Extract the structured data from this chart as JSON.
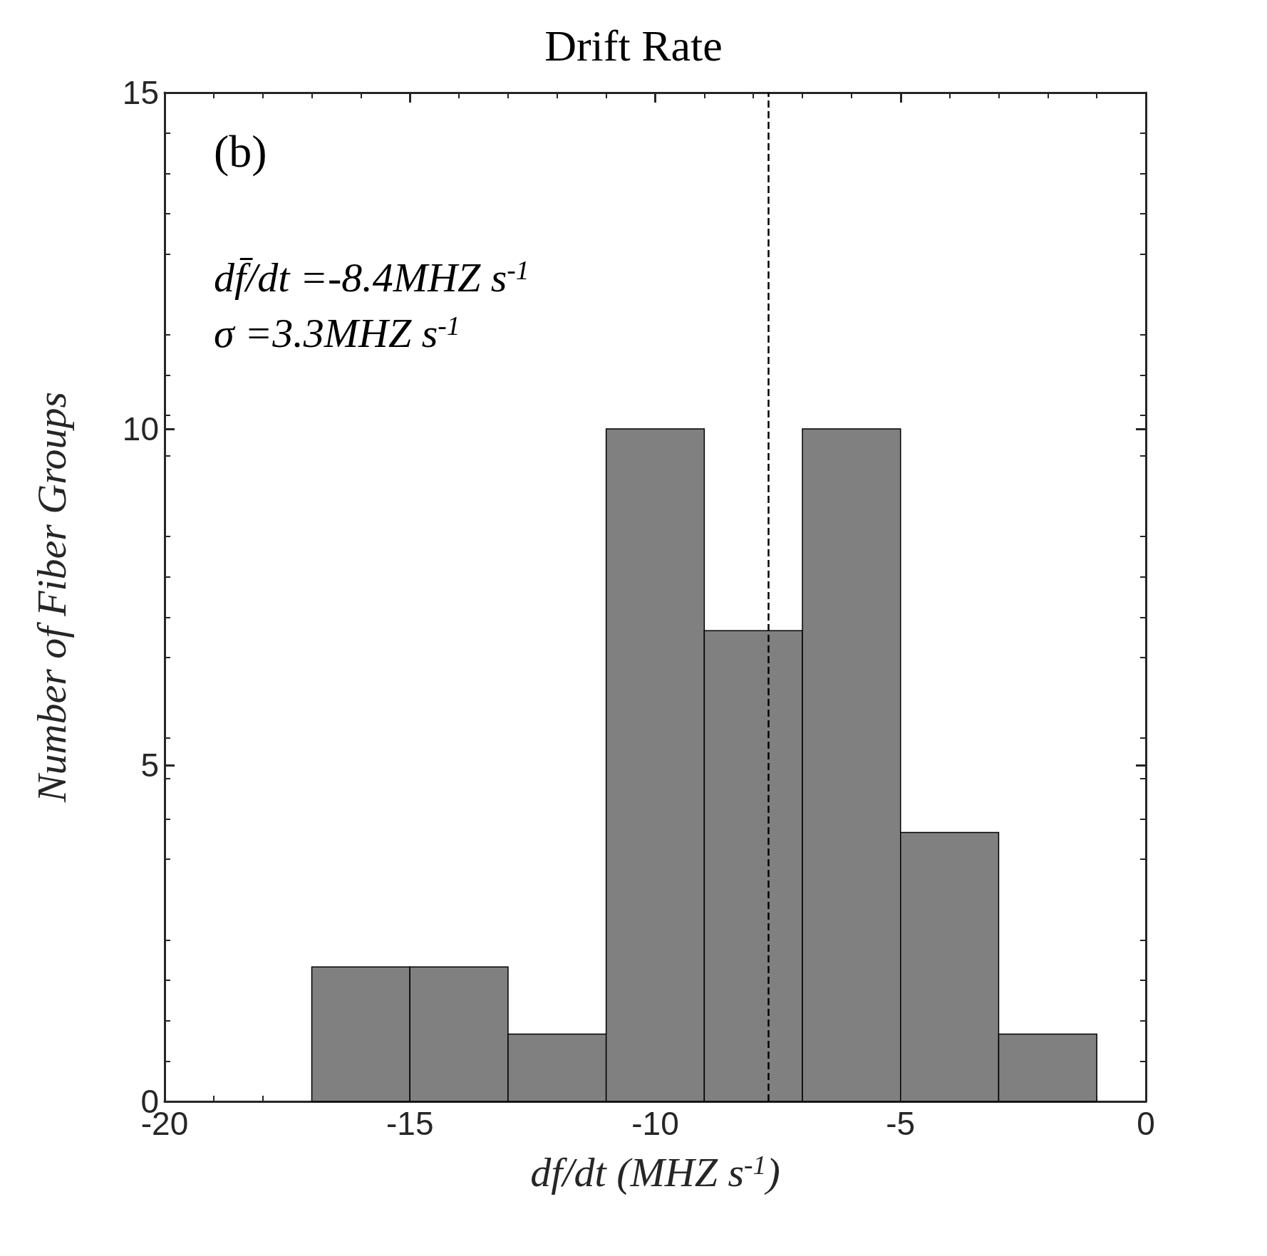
{
  "chart_data": {
    "type": "histogram",
    "title": "Drift Rate",
    "xlabel": "df/dt (MHZ s$^{-1}$)",
    "ylabel": "Number of Fiber Groups",
    "bins": [
      -17,
      -15,
      -13,
      -11,
      -9,
      -7,
      -5,
      -3,
      -1
    ],
    "values": [
      2,
      2,
      1,
      10,
      7,
      10,
      4,
      1
    ],
    "color": "#808080",
    "xlim": [
      -20,
      0
    ],
    "xticks": [
      -20,
      -15,
      -10,
      -5,
      0
    ],
    "ylim": [
      0,
      15
    ],
    "yticks": [
      0,
      5,
      10,
      15
    ],
    "ref_lines": [
      {
        "axis": "x",
        "value": -7.7,
        "line_style": "dashed",
        "color": "#000000"
      }
    ],
    "annotations": [
      "(b)",
      "df̄/dt =-8.4MHZ s$^{-1}$",
      "σ =3.3MHZ s$^{-1}$"
    ],
    "grid": false
  }
}
